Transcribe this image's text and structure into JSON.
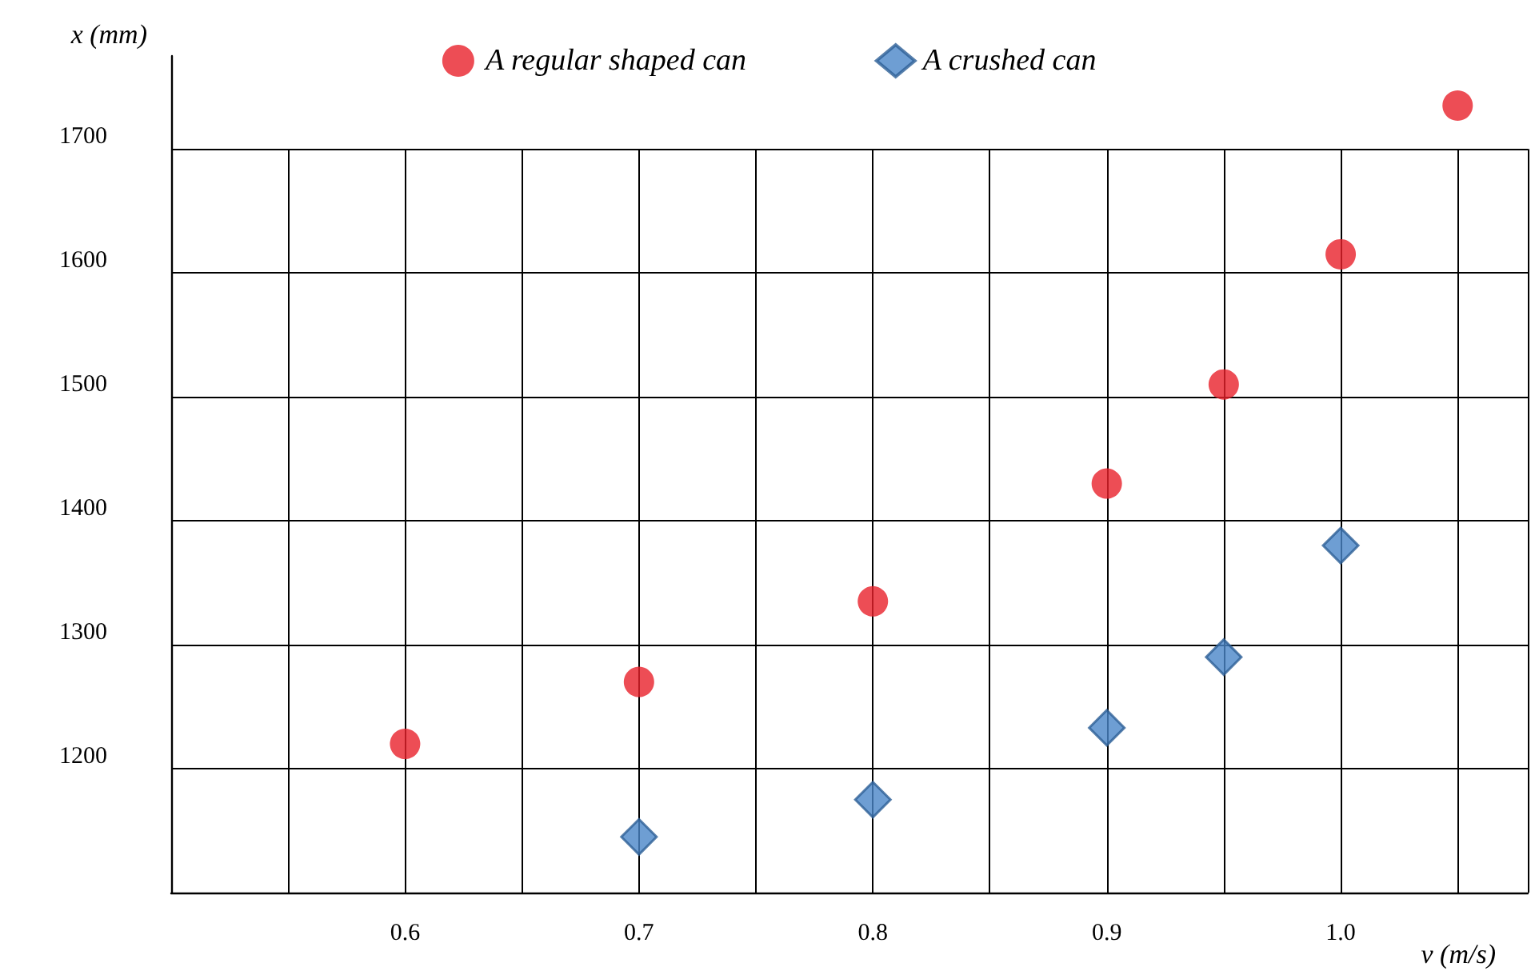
{
  "chart_data": {
    "type": "scatter",
    "xlabel": "v (m/s)",
    "ylabel": "x (mm)",
    "xlim": [
      0.5,
      1.08
    ],
    "xticks": [
      {
        "value": 0.55,
        "label": null
      },
      {
        "value": 0.6,
        "label": "0.6"
      },
      {
        "value": 0.65,
        "label": null
      },
      {
        "value": 0.7,
        "label": "0.7"
      },
      {
        "value": 0.75,
        "label": null
      },
      {
        "value": 0.8,
        "label": "0.8"
      },
      {
        "value": 0.85,
        "label": null
      },
      {
        "value": 0.9,
        "label": "0.9"
      },
      {
        "value": 0.95,
        "label": null
      },
      {
        "value": 1.0,
        "label": "1.0"
      },
      {
        "value": 1.05,
        "label": null
      }
    ],
    "ylim": [
      1100,
      1775
    ],
    "yticks": [
      1200,
      1300,
      1400,
      1500,
      1600,
      1700
    ],
    "grid": true,
    "legend": "top",
    "series": [
      {
        "name": "A regular shaped can",
        "color": "#e8202a",
        "marker": "circle",
        "x": [
          0.6,
          0.7,
          0.8,
          0.9,
          0.95,
          1.0,
          1.05
        ],
        "values": [
          1220,
          1270,
          1335,
          1430,
          1510,
          1615,
          1735
        ]
      },
      {
        "name": "A crushed can",
        "color": "#4a86c8",
        "marker": "diamond",
        "x": [
          0.7,
          0.8,
          0.9,
          0.95,
          1.0
        ],
        "values": [
          1145,
          1175,
          1233,
          1290,
          1380
        ]
      }
    ]
  }
}
